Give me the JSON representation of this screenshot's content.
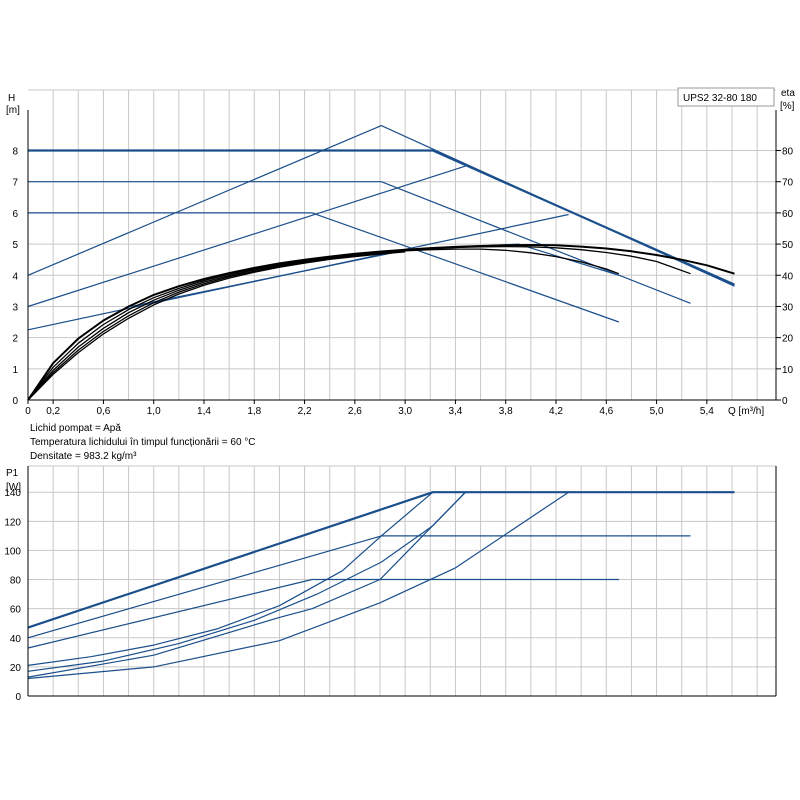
{
  "model": "UPS2 32-80 180",
  "notes": [
    "Lichid pompat = Apă",
    "Temperatura lichidului în timpul funcționării = 60 °C",
    "Densitate = 983.2 kg/m³"
  ],
  "chart_data": [
    {
      "type": "line",
      "id": "performance",
      "ylabel": "H",
      "ylabel_unit": "[m]",
      "y2label": "eta",
      "y2label_unit": "[%]",
      "xlabel": "Q [m³/h]",
      "xlim": [
        0,
        5.95
      ],
      "ylim": [
        0,
        9.3
      ],
      "y2lim": [
        0,
        93
      ],
      "x_ticks": [
        "0",
        "0,2",
        "0,6",
        "1,0",
        "1,4",
        "1,8",
        "2,2",
        "2,6",
        "3,0",
        "3,4",
        "3,8",
        "4,2",
        "4,6",
        "5,0",
        "5,4"
      ],
      "x_tick_values": [
        0,
        0.2,
        0.6,
        1.0,
        1.4,
        1.8,
        2.2,
        2.6,
        3.0,
        3.4,
        3.8,
        4.2,
        4.6,
        5.0,
        5.4
      ],
      "y_ticks": [
        0,
        1,
        2,
        3,
        4,
        5,
        6,
        7,
        8
      ],
      "y2_ticks": [
        0,
        10,
        20,
        30,
        40,
        50,
        60,
        70,
        80
      ],
      "grid": true,
      "series": [
        {
          "color": "#1a4f8c",
          "width": 2.2,
          "points": [
            [
              0,
              8
            ],
            [
              3.22,
              8
            ],
            [
              5.62,
              3.7
            ]
          ]
        },
        {
          "color": "#1a4f8c",
          "width": 1.2,
          "points": [
            [
              0,
              7
            ],
            [
              2.81,
              7
            ],
            [
              5.27,
              3.1
            ]
          ]
        },
        {
          "color": "#1a4f8c",
          "width": 1.2,
          "points": [
            [
              0,
              6
            ],
            [
              2.26,
              6
            ],
            [
              4.7,
              2.5
            ]
          ]
        },
        {
          "color": "#1a4f8c",
          "width": 1.2,
          "points": [
            [
              0,
              4.0
            ],
            [
              2.81,
              8.8
            ],
            [
              5.62,
              3.65
            ]
          ]
        },
        {
          "color": "#1a4f8c",
          "width": 1.2,
          "points": [
            [
              0,
              3.0
            ],
            [
              3.48,
              7.5
            ]
          ]
        },
        {
          "color": "#1a4f8c",
          "width": 1.2,
          "points": [
            [
              0,
              2.25
            ],
            [
              4.3,
              5.95
            ]
          ]
        },
        {
          "color": "#1a4f8c",
          "width": 1.2,
          "points": [
            [
              0.82,
              3.0
            ],
            [
              3.0,
              4.8
            ],
            [
              3.9,
              5.0
            ],
            [
              4.7,
              4.0
            ]
          ]
        },
        {
          "color": "#000000",
          "width": 2.0,
          "points": [
            [
              0,
              0
            ],
            [
              0.2,
              1.18
            ],
            [
              0.4,
              1.97
            ],
            [
              0.6,
              2.55
            ],
            [
              0.8,
              3.0
            ],
            [
              1.0,
              3.37
            ],
            [
              1.2,
              3.65
            ],
            [
              1.4,
              3.88
            ],
            [
              1.6,
              4.07
            ],
            [
              1.8,
              4.24
            ],
            [
              2.0,
              4.38
            ],
            [
              2.2,
              4.5
            ],
            [
              2.4,
              4.6
            ],
            [
              2.6,
              4.69
            ],
            [
              2.8,
              4.76
            ],
            [
              3.0,
              4.82
            ],
            [
              3.2,
              4.87
            ],
            [
              3.4,
              4.91
            ],
            [
              3.6,
              4.94
            ],
            [
              3.8,
              4.96
            ],
            [
              4.0,
              4.97
            ],
            [
              4.2,
              4.96
            ],
            [
              4.4,
              4.92
            ],
            [
              4.6,
              4.86
            ],
            [
              4.8,
              4.77
            ],
            [
              5.0,
              4.65
            ],
            [
              5.2,
              4.5
            ],
            [
              5.4,
              4.32
            ],
            [
              5.62,
              4.05
            ]
          ]
        },
        {
          "color": "#000000",
          "width": 1.3,
          "points": [
            [
              0,
              0
            ],
            [
              0.2,
              1.05
            ],
            [
              0.4,
              1.82
            ],
            [
              0.6,
              2.42
            ],
            [
              0.8,
              2.9
            ],
            [
              1.0,
              3.28
            ],
            [
              1.2,
              3.58
            ],
            [
              1.4,
              3.83
            ],
            [
              1.6,
              4.03
            ],
            [
              1.8,
              4.2
            ],
            [
              2.0,
              4.35
            ],
            [
              2.2,
              4.48
            ],
            [
              2.4,
              4.58
            ],
            [
              2.6,
              4.67
            ],
            [
              2.8,
              4.74
            ],
            [
              3.0,
              4.8
            ],
            [
              3.2,
              4.85
            ],
            [
              3.4,
              4.89
            ],
            [
              3.6,
              4.91
            ],
            [
              3.8,
              4.92
            ],
            [
              4.0,
              4.91
            ],
            [
              4.2,
              4.88
            ],
            [
              4.4,
              4.82
            ],
            [
              4.6,
              4.73
            ],
            [
              4.8,
              4.61
            ],
            [
              5.0,
              4.44
            ],
            [
              5.27,
              4.05
            ]
          ]
        },
        {
          "color": "#000000",
          "width": 1.3,
          "points": [
            [
              0,
              0
            ],
            [
              0.2,
              0.95
            ],
            [
              0.4,
              1.7
            ],
            [
              0.6,
              2.3
            ],
            [
              0.8,
              2.8
            ],
            [
              1.0,
              3.2
            ],
            [
              1.2,
              3.52
            ],
            [
              1.4,
              3.78
            ],
            [
              1.6,
              3.99
            ],
            [
              1.8,
              4.17
            ],
            [
              2.0,
              4.32
            ],
            [
              2.2,
              4.45
            ],
            [
              2.4,
              4.56
            ],
            [
              2.6,
              4.65
            ],
            [
              2.8,
              4.72
            ],
            [
              3.0,
              4.78
            ],
            [
              3.2,
              4.82
            ],
            [
              3.4,
              4.84
            ],
            [
              3.6,
              4.84
            ],
            [
              3.8,
              4.8
            ],
            [
              4.0,
              4.72
            ],
            [
              4.2,
              4.6
            ],
            [
              4.4,
              4.43
            ],
            [
              4.6,
              4.2
            ],
            [
              4.7,
              4.05
            ]
          ]
        },
        {
          "color": "#000000",
          "width": 1.3,
          "points": [
            [
              0,
              0
            ],
            [
              0.2,
              0.88
            ],
            [
              0.4,
              1.6
            ],
            [
              0.6,
              2.2
            ],
            [
              0.8,
              2.7
            ],
            [
              1.0,
              3.12
            ],
            [
              1.2,
              3.46
            ],
            [
              1.4,
              3.73
            ],
            [
              1.6,
              3.95
            ],
            [
              1.8,
              4.13
            ],
            [
              2.0,
              4.29
            ],
            [
              2.2,
              4.42
            ],
            [
              2.4,
              4.53
            ],
            [
              2.6,
              4.62
            ],
            [
              2.8,
              4.7
            ],
            [
              3.0,
              4.76
            ]
          ]
        },
        {
          "color": "#000000",
          "width": 1.3,
          "points": [
            [
              0,
              0
            ],
            [
              0.2,
              0.82
            ],
            [
              0.4,
              1.52
            ],
            [
              0.6,
              2.12
            ],
            [
              0.8,
              2.62
            ],
            [
              1.0,
              3.05
            ],
            [
              1.2,
              3.4
            ],
            [
              1.4,
              3.68
            ],
            [
              1.6,
              3.91
            ],
            [
              1.8,
              4.1
            ],
            [
              2.0,
              4.26
            ],
            [
              2.2,
              4.39
            ],
            [
              2.4,
              4.51
            ],
            [
              2.6,
              4.6
            ],
            [
              2.8,
              4.68
            ],
            [
              3.0,
              4.75
            ]
          ]
        }
      ]
    },
    {
      "type": "line",
      "id": "power",
      "ylabel": "P1",
      "ylabel_unit": "[W]",
      "xlim": [
        0,
        5.95
      ],
      "ylim": [
        0,
        158
      ],
      "y_ticks": [
        0,
        20,
        40,
        60,
        80,
        100,
        120,
        140
      ],
      "grid": true,
      "series": [
        {
          "color": "#1a4f8c",
          "width": 2.2,
          "points": [
            [
              0,
              47
            ],
            [
              3.22,
              140
            ],
            [
              5.62,
              140
            ]
          ]
        },
        {
          "color": "#1a4f8c",
          "width": 1.2,
          "points": [
            [
              0,
              40
            ],
            [
              2.81,
              110
            ],
            [
              5.27,
              110
            ]
          ]
        },
        {
          "color": "#1a4f8c",
          "width": 1.2,
          "points": [
            [
              0,
              33
            ],
            [
              2.26,
              80
            ],
            [
              4.7,
              80
            ]
          ]
        },
        {
          "color": "#1a4f8c",
          "width": 1.2,
          "points": [
            [
              0,
              21
            ],
            [
              0.5,
              27
            ],
            [
              1.0,
              35
            ],
            [
              1.5,
              46
            ],
            [
              2.0,
              62
            ],
            [
              2.5,
              86
            ],
            [
              2.81,
              110
            ],
            [
              3.22,
              140
            ],
            [
              3.5,
              140
            ]
          ]
        },
        {
          "color": "#1a4f8c",
          "width": 1.2,
          "points": [
            [
              0,
              13
            ],
            [
              1.0,
              28
            ],
            [
              2.0,
              54
            ],
            [
              2.26,
              60
            ],
            [
              2.8,
              80
            ],
            [
              3.48,
              140
            ],
            [
              3.6,
              140
            ]
          ]
        },
        {
          "color": "#1a4f8c",
          "width": 1.2,
          "points": [
            [
              0,
              12
            ],
            [
              1.0,
              20
            ],
            [
              2.0,
              38
            ],
            [
              2.8,
              64
            ],
            [
              3.4,
              88
            ],
            [
              4.3,
              140
            ],
            [
              4.4,
              140
            ]
          ]
        },
        {
          "color": "#1a4f8c",
          "width": 1.2,
          "points": [
            [
              0,
              17
            ],
            [
              0.6,
              24
            ],
            [
              1.2,
              36
            ],
            [
              1.8,
              52
            ],
            [
              2.3,
              70
            ],
            [
              2.81,
              92
            ],
            [
              3.22,
              117
            ],
            [
              3.48,
              140
            ]
          ]
        }
      ]
    }
  ]
}
